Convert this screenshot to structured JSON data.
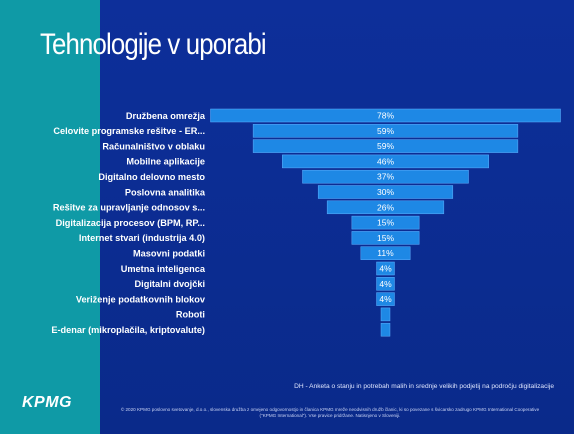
{
  "slide": {
    "title": "Tehnologije v uporabi",
    "logo": "KPMG",
    "source": "DH - Anketa o stanju in potrebah malih in srednje velikih podjetij na področju digitalizacije",
    "footer": "© 2020 KPMG poslovno svetovanje, d.o.o., slovenska družba z omejeno odgovornostjo in članica KPMG mreže neodvisnih družb članic, ki so povezane s švicarsko zadrugo KPMG International Cooperative (\"KPMG International\"). Vse pravice pridržane. Natisnjeno v Sloveniji."
  },
  "colors": {
    "teal": "#0f9aa6",
    "background": "#0a2a8c",
    "bar": "#1e88e5",
    "bar_edge": "#5fb0ff"
  },
  "chart_data": {
    "type": "bar",
    "orientation": "horizontal-centered",
    "categories": [
      "Družbena omrežja",
      "Celovite programske rešitve - ER...",
      "Računalništvo v oblaku",
      "Mobilne aplikacije",
      "Digitalno delovno mesto",
      "Poslovna analitika",
      "Rešitve za upravljanje odnosov s...",
      "Digitalizacija procesov (BPM, RP...",
      "Internet stvari (industrija 4.0)",
      "Masovni podatki",
      "Umetna inteligenca",
      "Digitalni dvojčki",
      "Veriženje podatkovnih blokov",
      "Roboti",
      "E-denar (mikroplačila, kriptovalute)"
    ],
    "values": [
      78,
      59,
      59,
      46,
      37,
      30,
      26,
      15,
      15,
      11,
      4,
      4,
      4,
      2,
      2
    ],
    "labels": [
      "78%",
      "59%",
      "59%",
      "46%",
      "37%",
      "30%",
      "26%",
      "15%",
      "15%",
      "11%",
      "4%",
      "4%",
      "4%",
      "",
      ""
    ],
    "unit": "%"
  }
}
